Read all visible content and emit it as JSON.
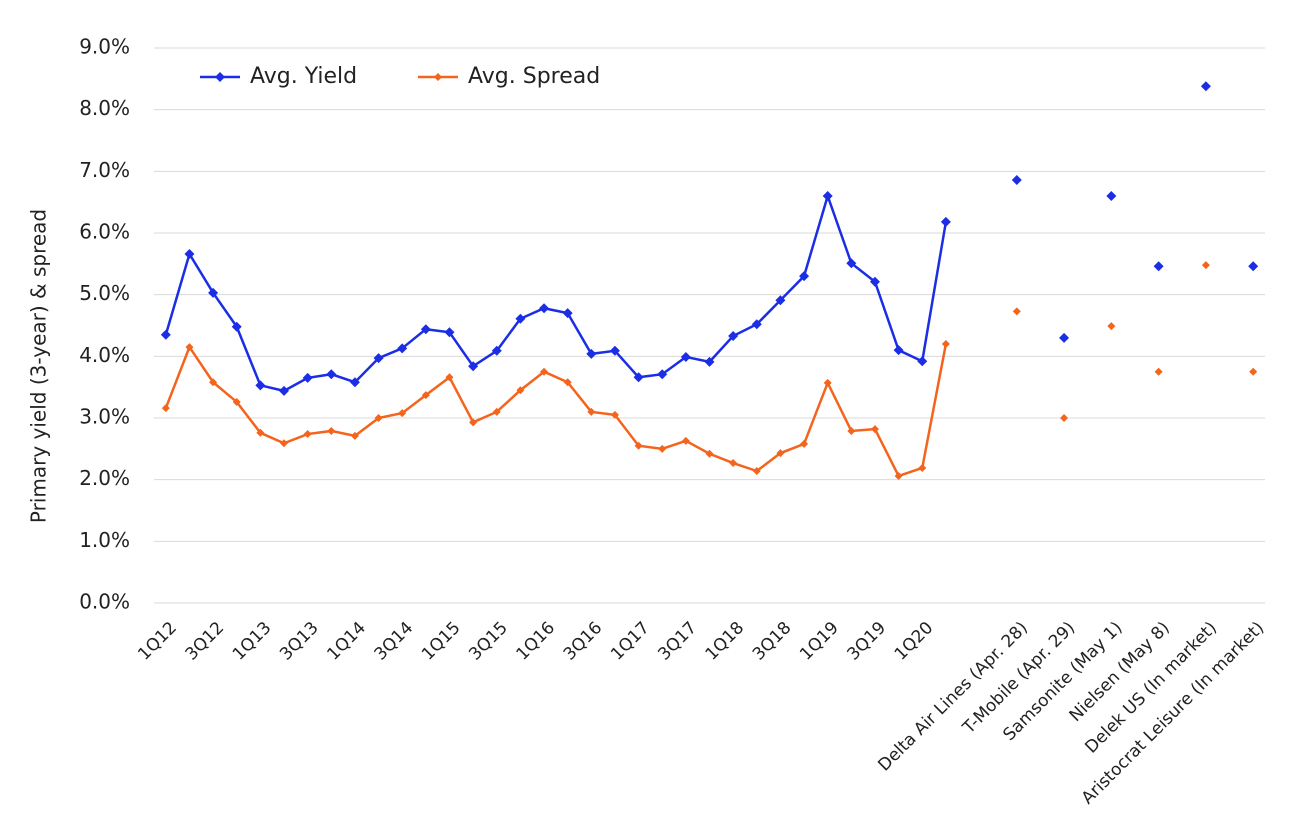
{
  "chart_data": {
    "type": "line",
    "y_label": "Primary yield (3-year) & spread",
    "categories": [
      "1Q12",
      null,
      "3Q12",
      null,
      "1Q13",
      null,
      "3Q13",
      null,
      "1Q14",
      null,
      "3Q14",
      null,
      "1Q15",
      null,
      "3Q15",
      null,
      "1Q16",
      null,
      "3Q16",
      null,
      "1Q17",
      null,
      "3Q17",
      null,
      "1Q18",
      null,
      "3Q18",
      null,
      "1Q19",
      null,
      "3Q19",
      null,
      "1Q20",
      null,
      null,
      null,
      "Delta Air Lines (Apr. 28)",
      null,
      "T-Mobile (Apr. 29)",
      null,
      "Samsonite (May 1)",
      null,
      "Nielsen (May 8)",
      null,
      "Delek US (In market)",
      null,
      "Aristocrat Leisure (In market)"
    ],
    "series": [
      {
        "name": "Avg. Yield",
        "color": "#1b2ee6",
        "values": [
          4.35,
          5.66,
          5.03,
          4.48,
          3.53,
          3.44,
          3.65,
          3.71,
          3.58,
          3.97,
          4.13,
          4.44,
          4.39,
          3.84,
          4.09,
          4.61,
          4.78,
          4.7,
          4.04,
          4.09,
          3.66,
          3.71,
          3.99,
          3.91,
          4.33,
          4.52,
          4.91,
          5.3,
          6.6,
          5.51,
          5.21,
          4.1,
          3.92,
          6.18,
          null,
          null,
          6.86,
          null,
          4.3,
          null,
          6.6,
          null,
          5.46,
          null,
          8.38,
          null,
          5.46
        ]
      },
      {
        "name": "Avg. Spread",
        "color": "#f4641c",
        "values": [
          3.16,
          4.15,
          3.58,
          3.26,
          2.76,
          2.59,
          2.74,
          2.79,
          2.71,
          3.0,
          3.08,
          3.37,
          3.66,
          2.93,
          3.1,
          3.45,
          3.75,
          3.58,
          3.1,
          3.05,
          2.55,
          2.5,
          2.63,
          2.42,
          2.27,
          2.14,
          2.43,
          2.58,
          3.57,
          2.79,
          2.82,
          2.06,
          2.19,
          4.2,
          null,
          null,
          4.73,
          null,
          3.0,
          null,
          4.49,
          null,
          3.75,
          null,
          5.48,
          null,
          3.75
        ]
      }
    ],
    "ylim": [
      0,
      9
    ],
    "yticks": [
      {
        "value": 0,
        "label": "0.0%"
      },
      {
        "value": 1,
        "label": "1.0%"
      },
      {
        "value": 2,
        "label": "2.0%"
      },
      {
        "value": 3,
        "label": "3.0%"
      },
      {
        "value": 4,
        "label": "4.0%"
      },
      {
        "value": 5,
        "label": "5.0%"
      },
      {
        "value": 6,
        "label": "6.0%"
      },
      {
        "value": 7,
        "label": "7.0%"
      },
      {
        "value": 8,
        "label": "8.0%"
      },
      {
        "value": 9,
        "label": "9.0%"
      }
    ],
    "grid": true,
    "legend": "top-left"
  }
}
